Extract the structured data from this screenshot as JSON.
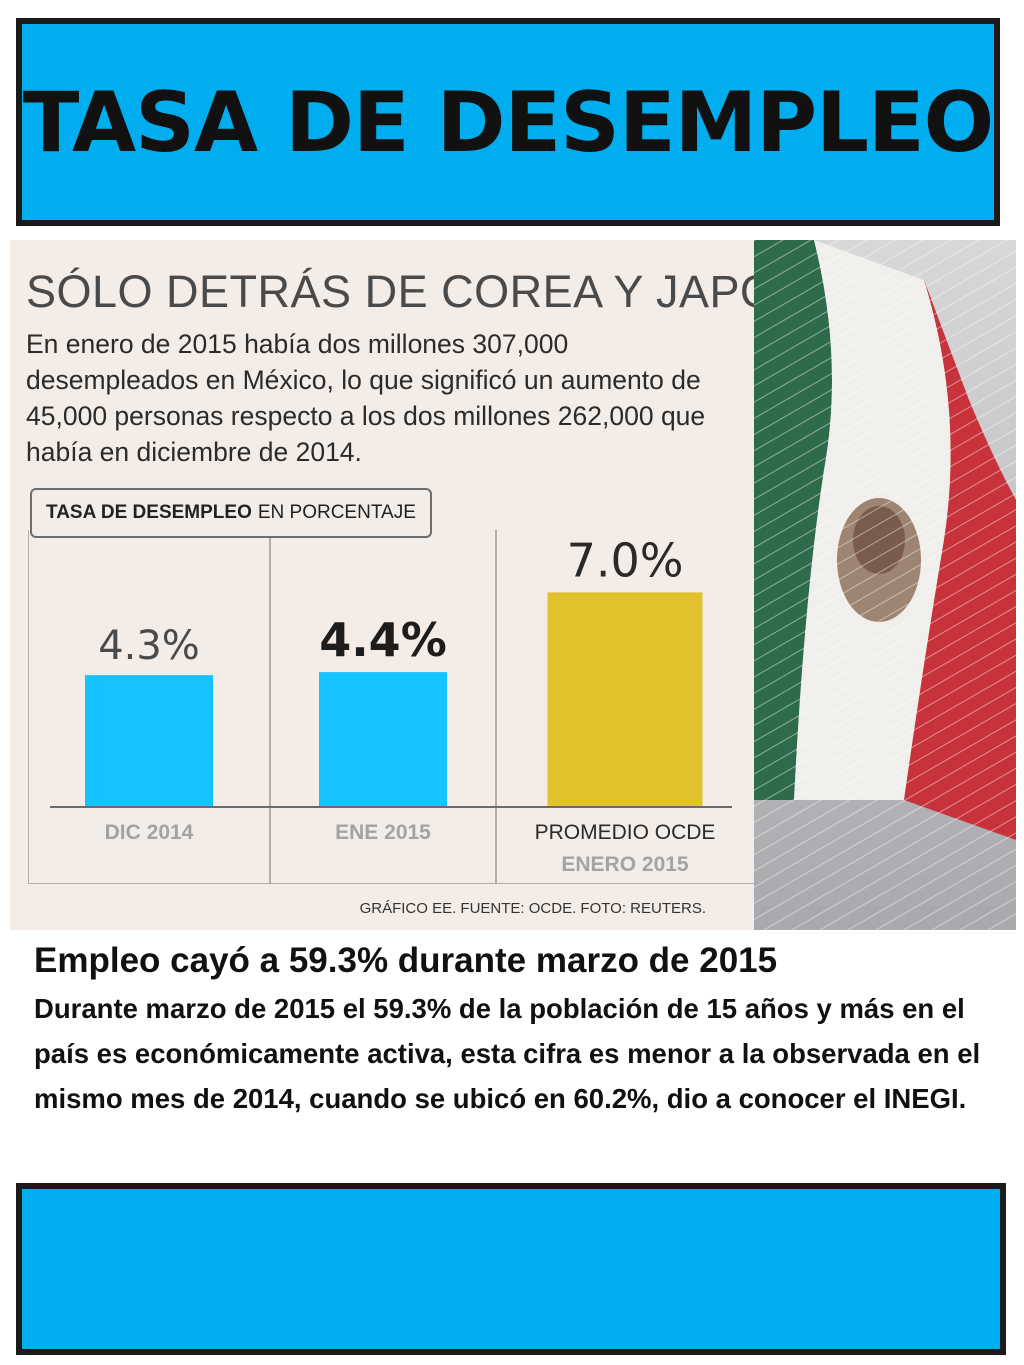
{
  "banner": {
    "title": "TASA DE DESEMPLEO"
  },
  "infographic": {
    "headline": "SÓLO DETRÁS DE COREA Y JAPÓN",
    "intro": "En enero de 2015 había dos millones 307,000 desempleados en México, lo que significó un aumento de 45,000 personas respecto a los dos millones 262,000 que había en diciembre de 2014.",
    "chart_label_bold": "TASA DE DESEMPLEO",
    "chart_label_rest": "EN PORCENTAJE",
    "credit": "GRÁFICO EE. FUENTE: OCDE. FOTO: REUTERS."
  },
  "chart_data": {
    "type": "bar",
    "title": "TASA DE DESEMPLEO EN PORCENTAJE",
    "categories": [
      "DIC 2014",
      "ENE 2015",
      "PROMEDIO OCDE ENERO 2015"
    ],
    "category_lines": [
      [
        "DIC 2014"
      ],
      [
        "ENE 2015"
      ],
      [
        "PROMEDIO OCDE",
        "ENERO 2015"
      ]
    ],
    "values": [
      4.3,
      4.4,
      7.0
    ],
    "value_labels": [
      "4.3%",
      "4.4%",
      "7.0%"
    ],
    "colors": [
      "#14c3ff",
      "#14c3ff",
      "#e0c22c"
    ],
    "ylim": [
      0,
      7.6
    ],
    "grid": false
  },
  "article": {
    "title": "Empleo cayó a 59.3% durante marzo de 2015",
    "body": "Durante marzo de 2015 el 59.3% de la población de 15 años y más en el país es económicamente activa, esta cifra es menor a la observada en el mismo mes de 2014, cuando se ubicó en 60.2%, dio a conocer el INEGI."
  },
  "colors": {
    "banner": "#00aeef",
    "flag_green": "#2e6b4a",
    "flag_red": "#c8323b"
  }
}
